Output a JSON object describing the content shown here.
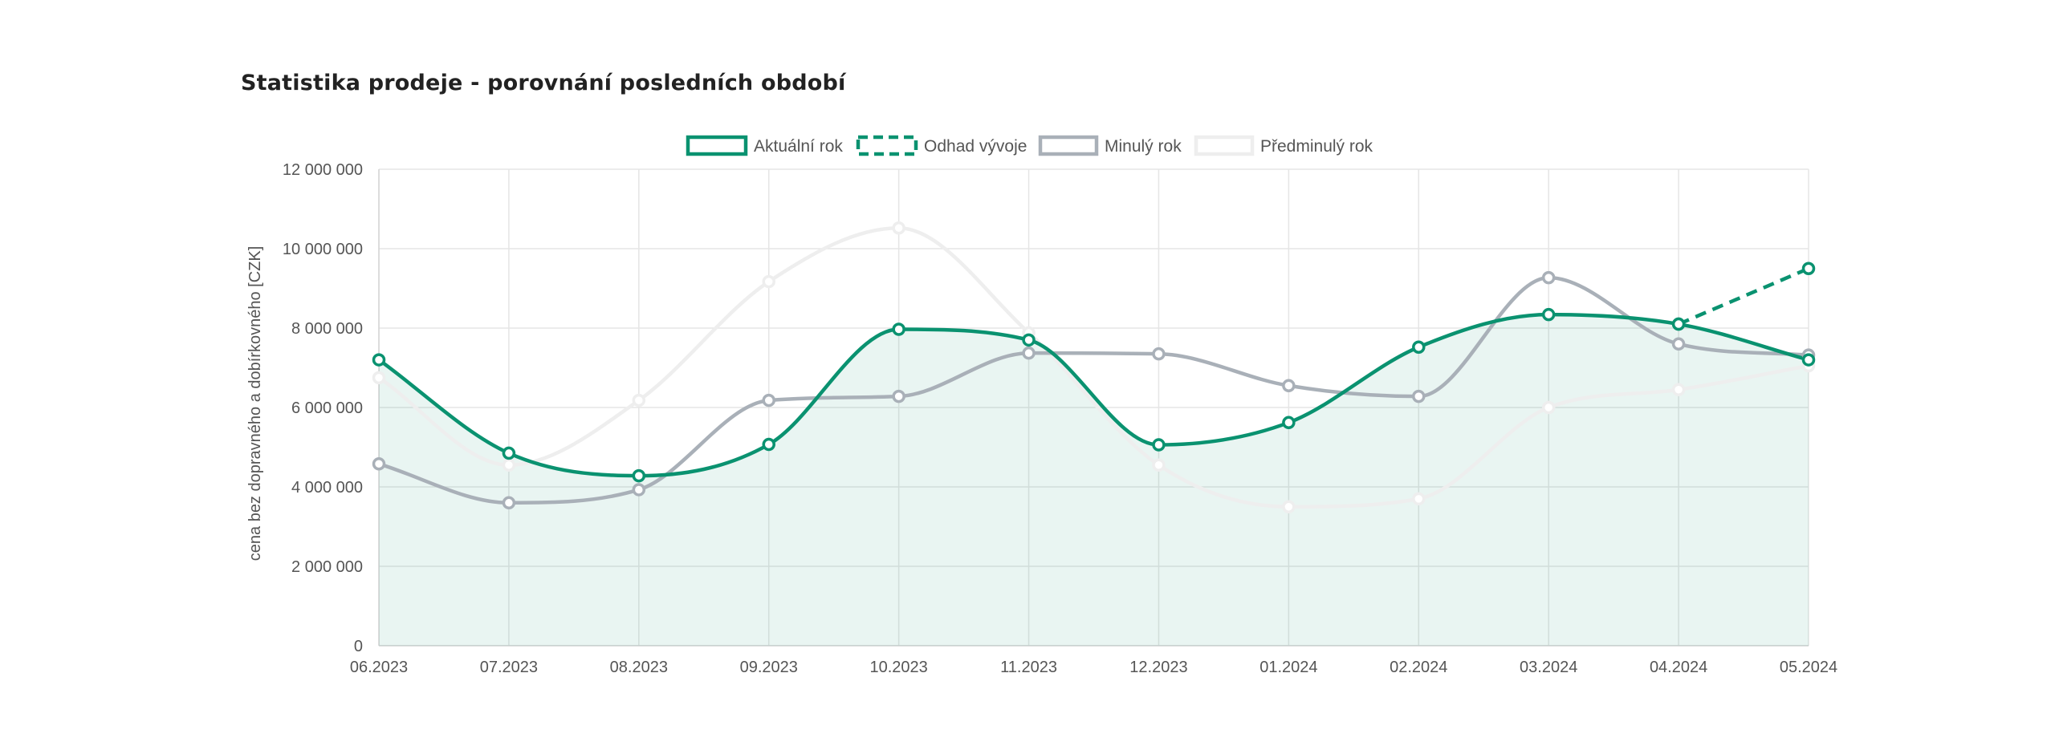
{
  "title": "Statistika prodeje - porovnání posledních období",
  "chart_data": {
    "type": "line",
    "categories": [
      "06.2023",
      "07.2023",
      "08.2023",
      "09.2023",
      "10.2023",
      "11.2023",
      "12.2023",
      "01.2024",
      "02.2024",
      "03.2024",
      "04.2024",
      "05.2024"
    ],
    "ylabel": "cena bez dopravného a dobírkovného [CZK]",
    "ylim": [
      0,
      12000000
    ],
    "yticks": [
      0,
      2000000,
      4000000,
      6000000,
      8000000,
      10000000,
      12000000
    ],
    "ytick_labels": [
      "0",
      "2 000 000",
      "4 000 000",
      "6 000 000",
      "8 000 000",
      "10 000 000",
      "12 000 000"
    ],
    "grid": true,
    "legend_position": "top-center",
    "series": [
      {
        "name": "Aktuální rok",
        "color": "#0a9270",
        "style": "solid",
        "fill": true,
        "values": [
          7200000,
          4850000,
          4280000,
          5070000,
          7970000,
          7700000,
          5060000,
          5620000,
          7520000,
          8340000,
          8100000,
          7200000
        ]
      },
      {
        "name": "Odhad vývoje",
        "color": "#0a9270",
        "style": "dashed",
        "fill": false,
        "values": [
          null,
          null,
          null,
          null,
          null,
          null,
          null,
          null,
          null,
          null,
          8100000,
          9500000
        ]
      },
      {
        "name": "Minulý rok",
        "color": "#a9b0b8",
        "style": "solid",
        "fill": false,
        "values": [
          4580000,
          3600000,
          3930000,
          6180000,
          6280000,
          7370000,
          7350000,
          6550000,
          6280000,
          9270000,
          7600000,
          7320000
        ]
      },
      {
        "name": "Předminulý rok",
        "color": "#eeeeee",
        "style": "solid",
        "fill": false,
        "values": [
          6750000,
          4550000,
          6180000,
          9170000,
          10520000,
          7880000,
          4550000,
          3500000,
          3700000,
          6000000,
          6450000,
          7050000
        ]
      }
    ]
  }
}
